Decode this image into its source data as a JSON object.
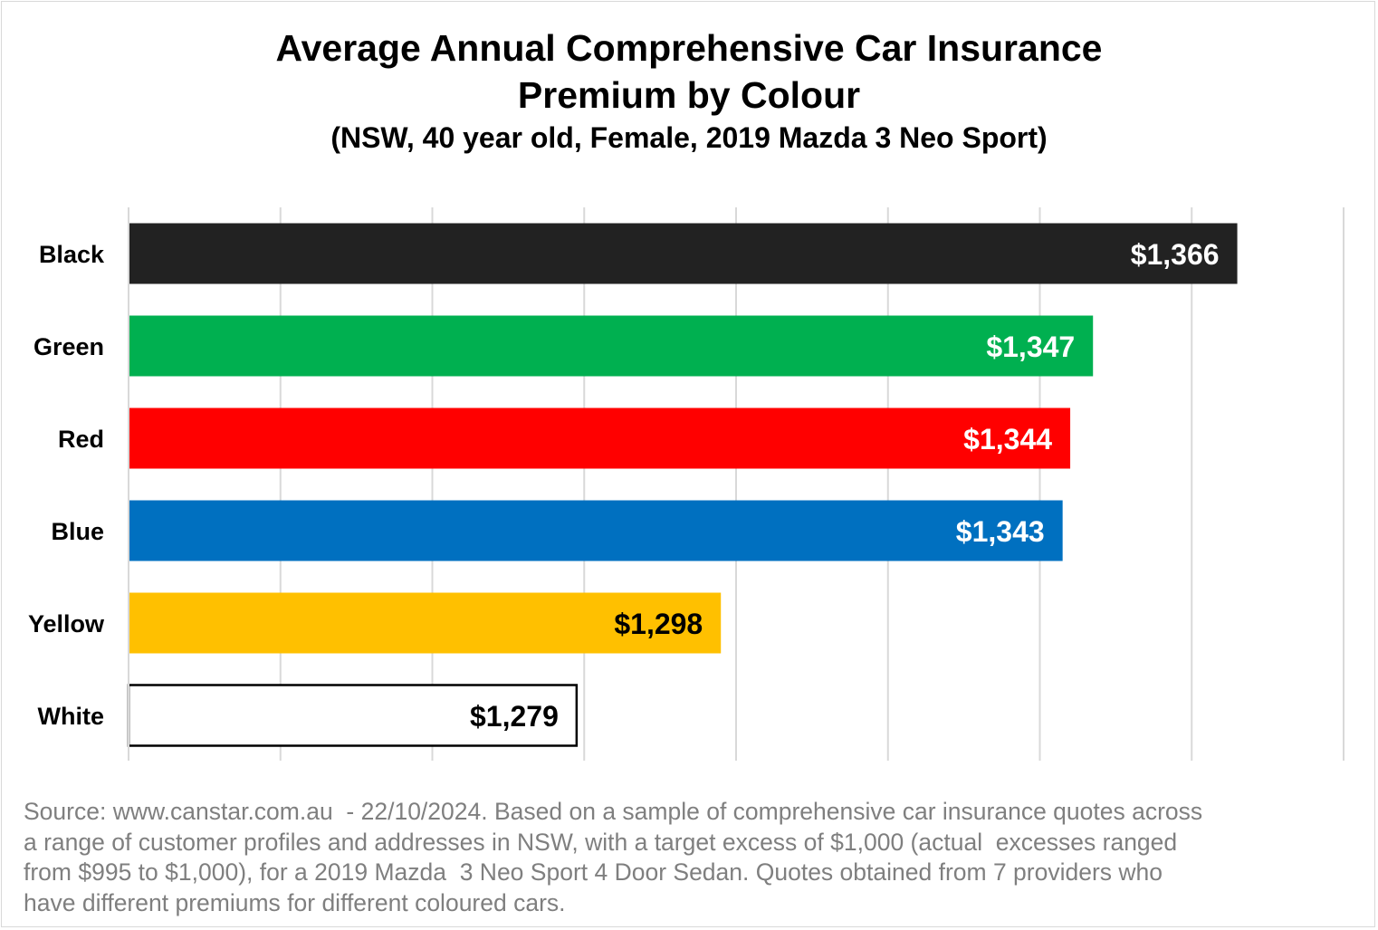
{
  "chart_data": {
    "type": "bar",
    "orientation": "horizontal",
    "title": "Average Annual Comprehensive Car Insurance Premium by Colour",
    "title_lines": [
      "Average Annual Comprehensive Car Insurance",
      "Premium by Colour"
    ],
    "subtitle": "(NSW, 40 year old, Female, 2019 Mazda 3 Neo Sport)",
    "categories": [
      "Black",
      "Green",
      "Red",
      "Blue",
      "Yellow",
      "White"
    ],
    "values": [
      1366,
      1347,
      1344,
      1343,
      1298,
      1279
    ],
    "data_labels": [
      "$1,366",
      "$1,347",
      "$1,344",
      "$1,343",
      "$1,298",
      "$1,279"
    ],
    "bar_colors": [
      "#222222",
      "#00b050",
      "#ff0000",
      "#0070c0",
      "#ffc000",
      "#ffffff"
    ],
    "label_colors": [
      "#ffffff",
      "#ffffff",
      "#ffffff",
      "#ffffff",
      "#000000",
      "#000000"
    ],
    "xlim": [
      1220,
      1380
    ],
    "x_grid_step": 20,
    "grid": true,
    "x_tick_labels_shown": false,
    "xlabel": "",
    "ylabel": "",
    "legend": "none"
  },
  "source_lines": [
    "Source: www.canstar.com.au  - 22/10/2024. Based on a sample of comprehensive car insurance quotes across",
    "a range of customer profiles and addresses in NSW, with a target excess of $1,000 (actual  excesses ranged",
    "from $995 to $1,000), for a 2019 Mazda  3 Neo Sport 4 Door Sedan. Quotes obtained from 7 providers who",
    "have different premiums for different coloured cars."
  ]
}
